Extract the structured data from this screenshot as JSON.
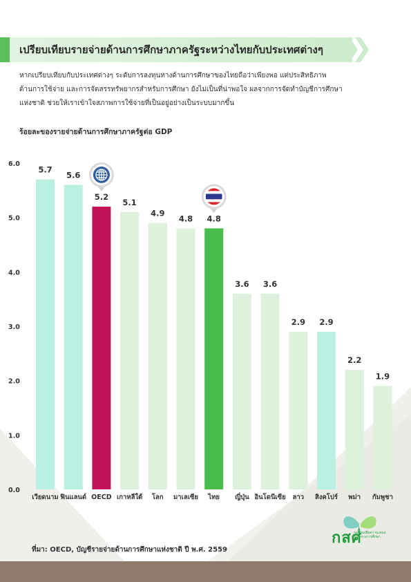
{
  "page_title": "เปรียบเทียบรายจ่ายด้านการศึกษาภาครัฐระหว่างไทยกับประเทศต่างๆ",
  "intro_lines": [
    "หากเปรียบเทียบกับประเทศต่างๆ ระดับการลงทุนทางด้านการศึกษาของไทยถือว่าเพียงพอ แต่ประสิทธิภาพ",
    "ด้านการใช้จ่าย และการจัดสรรทรัพยากรสำหรับการศึกษา ยังไม่เป็นที่น่าพอใจ ผลจากการจัดทำบัญชีการศึกษา",
    "แห่งชาติ ช่วยให้เราเข้าใจสภาพการใช้จ่ายที่เป็นอยู่อย่างเป็นระบบมากขึ้น"
  ],
  "source": "ที่มา: OECD, บัญชีรายจ่ายด้านการศึกษาแห่งชาติ ปี พ.ศ. 2559",
  "logo": {
    "main": "กสศ",
    "sub": "กองทุนเพื่อความเสมอภาคทางการศึกษา"
  },
  "colors": {
    "light_teal": "#b9f0e2",
    "light_green": "#def1dc",
    "oecd": "#c2125a",
    "thailand": "#48bd4d"
  },
  "chart_data": {
    "type": "bar",
    "title": "ร้อยละของรายจ่ายด้านการศึกษาภาครัฐต่อ GDP",
    "xlabel": "",
    "ylabel": "",
    "ylim": [
      0,
      6.0
    ],
    "yticks": [
      "0.0",
      "1.0",
      "2.0",
      "3.0",
      "4.0",
      "5.0",
      "6.0"
    ],
    "grid": false,
    "categories": [
      "เวียดนาม",
      "ฟินแลนด์",
      "OECD",
      "เกาหลีใต้",
      "โลก",
      "มาเลเซีย",
      "ไทย",
      "ญี่ปุ่น",
      "อินโดนีเซีย",
      "ลาว",
      "สิงคโปร์",
      "พม่า",
      "กัมพูชา"
    ],
    "values": [
      5.7,
      5.6,
      5.2,
      5.1,
      4.9,
      4.8,
      4.8,
      3.6,
      3.6,
      2.9,
      2.9,
      2.2,
      1.9
    ],
    "value_labels": [
      "5.7",
      "5.6",
      "5.2",
      "5.1",
      "4.9",
      "4.8",
      "4.8",
      "3.6",
      "3.6",
      "2.9",
      "2.9",
      "2.2",
      "1.9"
    ],
    "bar_colors": [
      "#b9f0e2",
      "#b9f0e2",
      "#c2125a",
      "#def1dc",
      "#def1dc",
      "#def1dc",
      "#48bd4d",
      "#def1dc",
      "#def1dc",
      "#def1dc",
      "#b9f0e2",
      "#def1dc",
      "#def1dc"
    ],
    "markers": [
      {
        "category": "OECD",
        "icon": "globe-icon"
      },
      {
        "category": "ไทย",
        "icon": "thai-flag-icon"
      }
    ]
  }
}
